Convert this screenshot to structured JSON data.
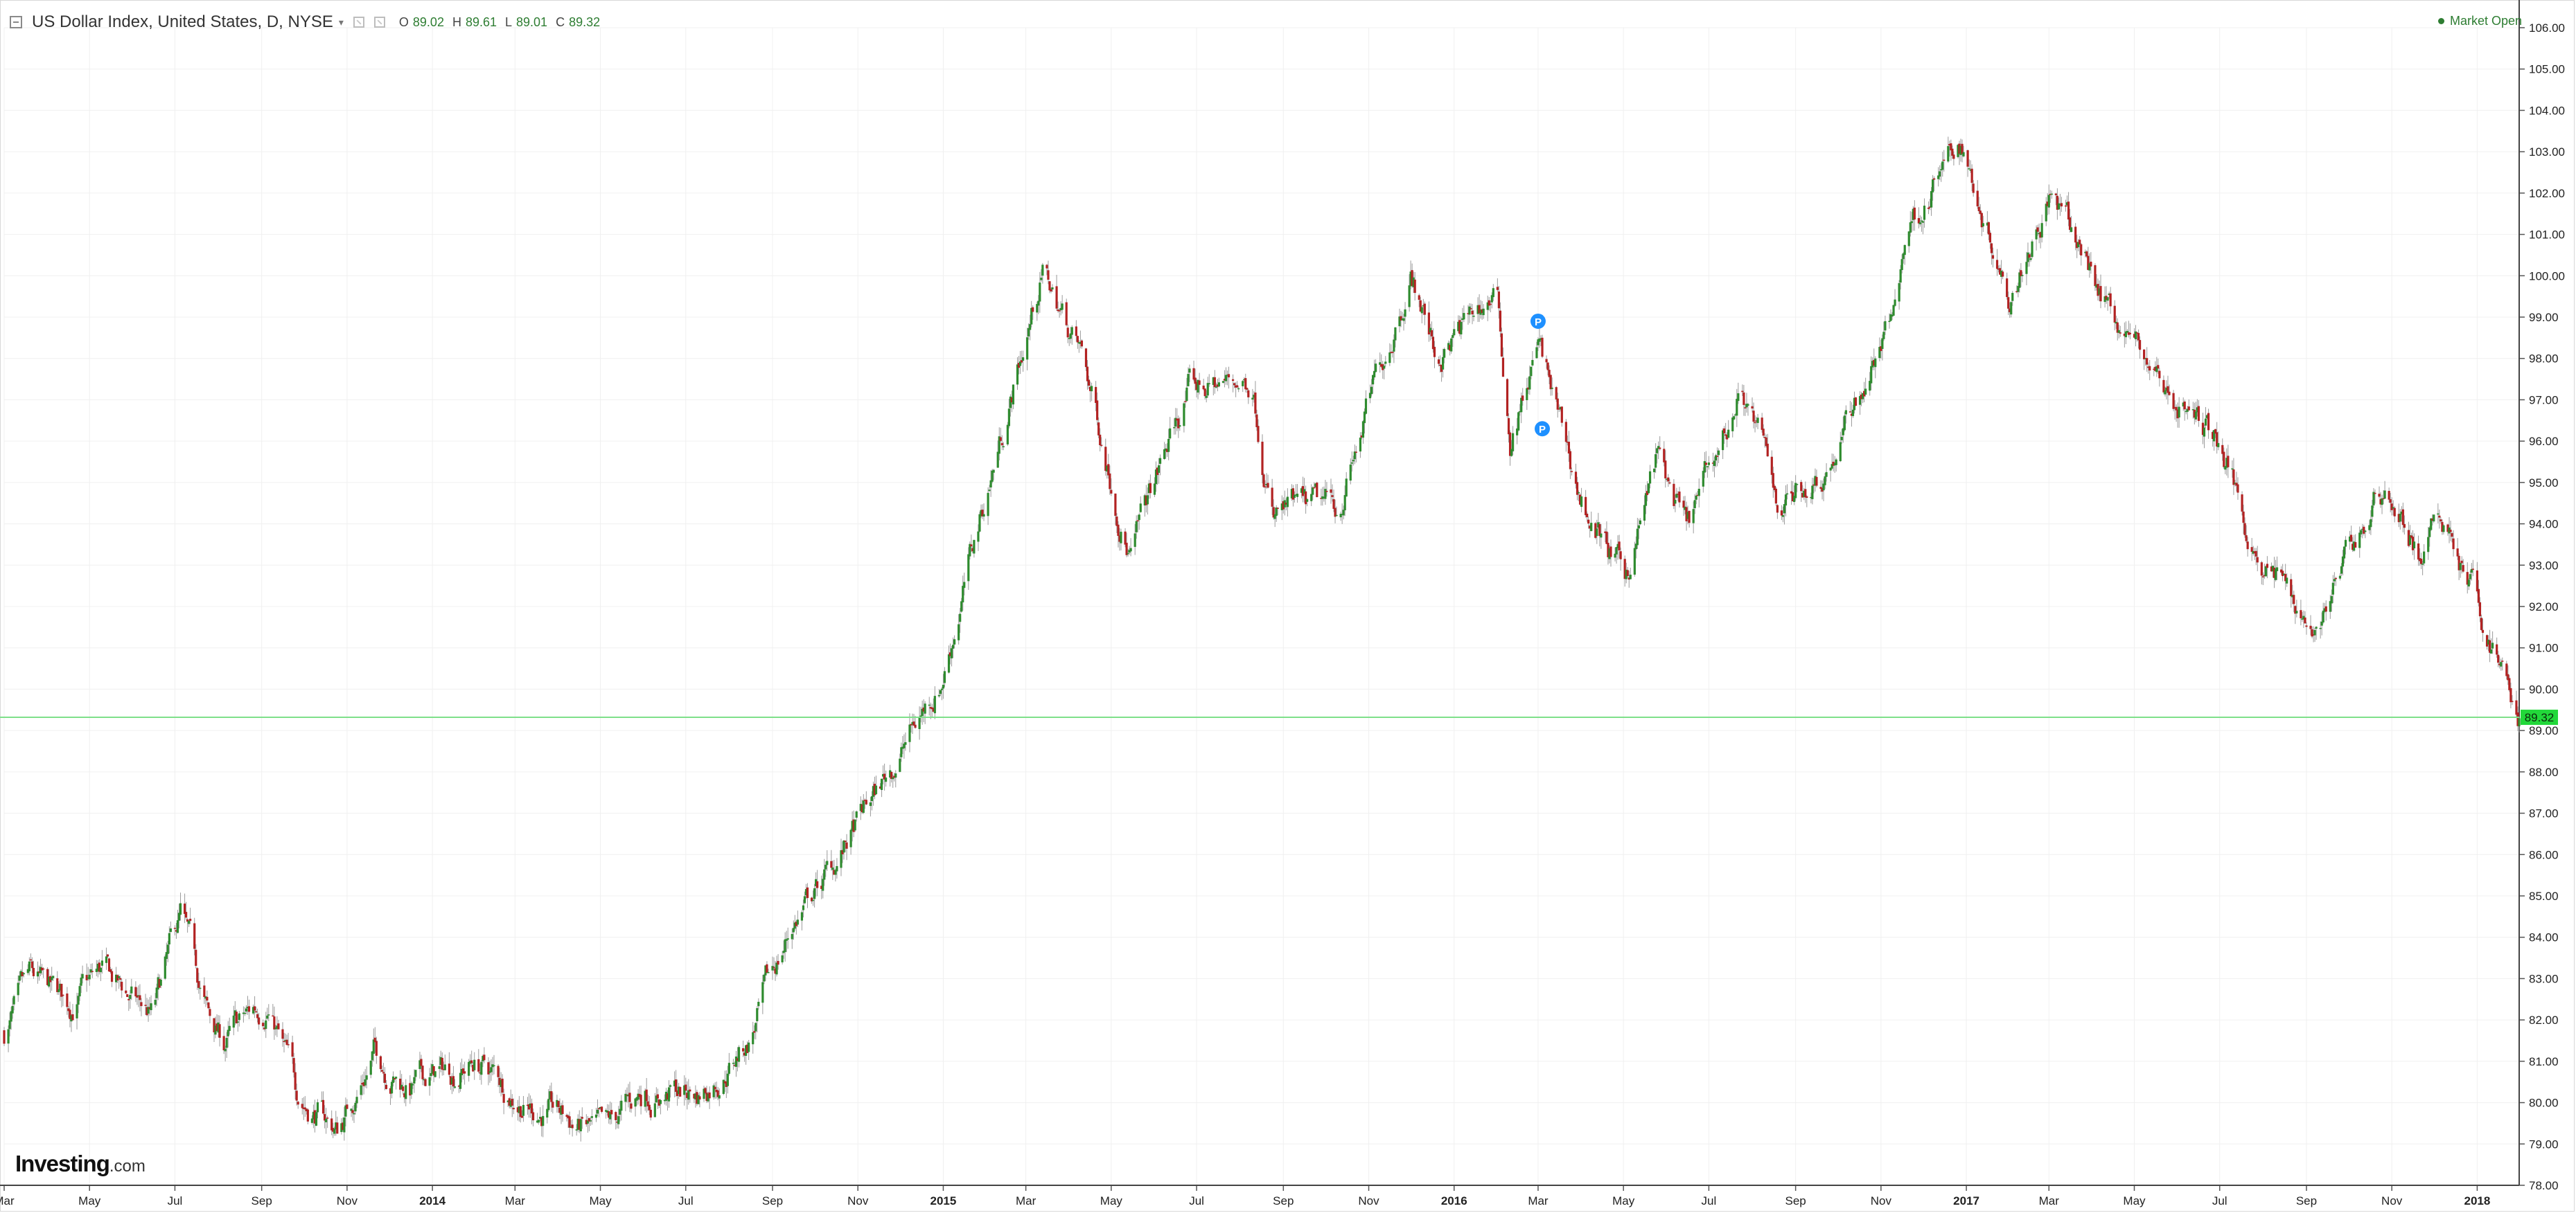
{
  "header": {
    "symbol_title": "US Dollar Index, United States, D, NYSE",
    "ohlc": {
      "o_label": "O",
      "o_value": "89.02",
      "h_label": "H",
      "h_value": "89.61",
      "l_label": "L",
      "l_value": "89.01",
      "c_label": "C",
      "c_value": "89.32"
    },
    "market_status": "Market Open"
  },
  "branding": {
    "name": "Investing",
    "domain": ".com"
  },
  "markers": {
    "label": "P"
  },
  "colors": {
    "up": "#2e8b2e",
    "down": "#b22222",
    "wick": "#9a9a9a",
    "grid": "#f0f0f0",
    "price_line": "#7ee08a",
    "price_tag": "#22d83a",
    "marker": "#1e90ff"
  },
  "chart_data": {
    "type": "candlestick",
    "title": "US Dollar Index, United States, D, NYSE",
    "current_price": 89.32,
    "current_price_label": "89.32",
    "ylim": [
      78.0,
      106.0
    ],
    "yticks": [
      "78.00",
      "79.00",
      "80.00",
      "81.00",
      "82.00",
      "83.00",
      "84.00",
      "85.00",
      "86.00",
      "87.00",
      "88.00",
      "89.00",
      "90.00",
      "91.00",
      "92.00",
      "93.00",
      "94.00",
      "95.00",
      "96.00",
      "97.00",
      "98.00",
      "99.00",
      "100.00",
      "101.00",
      "102.00",
      "103.00",
      "104.00",
      "105.00",
      "106.00"
    ],
    "xlim": [
      "2013-03-01",
      "2018-01-31"
    ],
    "xticks": [
      {
        "date": "2013-03-01",
        "label": "Mar",
        "bold": false
      },
      {
        "date": "2013-05-01",
        "label": "May",
        "bold": false
      },
      {
        "date": "2013-07-01",
        "label": "Jul",
        "bold": false
      },
      {
        "date": "2013-09-01",
        "label": "Sep",
        "bold": false
      },
      {
        "date": "2013-11-01",
        "label": "Nov",
        "bold": false
      },
      {
        "date": "2014-01-01",
        "label": "2014",
        "bold": true
      },
      {
        "date": "2014-03-01",
        "label": "Mar",
        "bold": false
      },
      {
        "date": "2014-05-01",
        "label": "May",
        "bold": false
      },
      {
        "date": "2014-07-01",
        "label": "Jul",
        "bold": false
      },
      {
        "date": "2014-09-01",
        "label": "Sep",
        "bold": false
      },
      {
        "date": "2014-11-01",
        "label": "Nov",
        "bold": false
      },
      {
        "date": "2015-01-01",
        "label": "2015",
        "bold": true
      },
      {
        "date": "2015-03-01",
        "label": "Mar",
        "bold": false
      },
      {
        "date": "2015-05-01",
        "label": "May",
        "bold": false
      },
      {
        "date": "2015-07-01",
        "label": "Jul",
        "bold": false
      },
      {
        "date": "2015-09-01",
        "label": "Sep",
        "bold": false
      },
      {
        "date": "2015-11-01",
        "label": "Nov",
        "bold": false
      },
      {
        "date": "2016-01-01",
        "label": "2016",
        "bold": true
      },
      {
        "date": "2016-03-01",
        "label": "Mar",
        "bold": false
      },
      {
        "date": "2016-05-01",
        "label": "May",
        "bold": false
      },
      {
        "date": "2016-07-01",
        "label": "Jul",
        "bold": false
      },
      {
        "date": "2016-09-01",
        "label": "Sep",
        "bold": false
      },
      {
        "date": "2016-11-01",
        "label": "Nov",
        "bold": false
      },
      {
        "date": "2017-01-01",
        "label": "2017",
        "bold": true
      },
      {
        "date": "2017-03-01",
        "label": "Mar",
        "bold": false
      },
      {
        "date": "2017-05-01",
        "label": "May",
        "bold": false
      },
      {
        "date": "2017-07-01",
        "label": "Jul",
        "bold": false
      },
      {
        "date": "2017-09-01",
        "label": "Sep",
        "bold": false
      },
      {
        "date": "2017-11-01",
        "label": "Nov",
        "bold": false
      },
      {
        "date": "2018-01-01",
        "label": "2018",
        "bold": true
      }
    ],
    "close_path": [
      {
        "date": "2013-03-01",
        "close": 81.7
      },
      {
        "date": "2013-03-20",
        "close": 82.8
      },
      {
        "date": "2013-04-15",
        "close": 82.3
      },
      {
        "date": "2013-05-10",
        "close": 83.1
      },
      {
        "date": "2013-06-15",
        "close": 82.0
      },
      {
        "date": "2013-07-05",
        "close": 84.4
      },
      {
        "date": "2013-07-25",
        "close": 82.0
      },
      {
        "date": "2013-08-05",
        "close": 81.4
      },
      {
        "date": "2013-09-05",
        "close": 82.5
      },
      {
        "date": "2013-09-25",
        "close": 80.3
      },
      {
        "date": "2013-10-25",
        "close": 79.3
      },
      {
        "date": "2013-11-20",
        "close": 81.2
      },
      {
        "date": "2013-12-15",
        "close": 80.4
      },
      {
        "date": "2014-02-01",
        "close": 81.0
      },
      {
        "date": "2014-03-10",
        "close": 80.0
      },
      {
        "date": "2014-05-05",
        "close": 79.1
      },
      {
        "date": "2014-06-01",
        "close": 80.3
      },
      {
        "date": "2014-07-10",
        "close": 80.2
      },
      {
        "date": "2014-08-15",
        "close": 81.5
      },
      {
        "date": "2014-09-15",
        "close": 84.3
      },
      {
        "date": "2014-10-15",
        "close": 85.7
      },
      {
        "date": "2014-11-15",
        "close": 87.5
      },
      {
        "date": "2014-12-31",
        "close": 90.3
      },
      {
        "date": "2015-01-31",
        "close": 94.6
      },
      {
        "date": "2015-03-13",
        "close": 100.1
      },
      {
        "date": "2015-04-10",
        "close": 98.0
      },
      {
        "date": "2015-05-15",
        "close": 93.3
      },
      {
        "date": "2015-06-25",
        "close": 97.2
      },
      {
        "date": "2015-08-10",
        "close": 97.5
      },
      {
        "date": "2015-08-25",
        "close": 94.2
      },
      {
        "date": "2015-10-10",
        "close": 94.3
      },
      {
        "date": "2015-12-01",
        "close": 100.2
      },
      {
        "date": "2015-12-20",
        "close": 98.0
      },
      {
        "date": "2016-01-31",
        "close": 99.6
      },
      {
        "date": "2016-02-10",
        "close": 96.0
      },
      {
        "date": "2016-03-01",
        "close": 98.3
      },
      {
        "date": "2016-03-31",
        "close": 94.6
      },
      {
        "date": "2016-05-02",
        "close": 92.6
      },
      {
        "date": "2016-05-25",
        "close": 95.6
      },
      {
        "date": "2016-06-15",
        "close": 93.7
      },
      {
        "date": "2016-07-25",
        "close": 97.3
      },
      {
        "date": "2016-08-20",
        "close": 94.5
      },
      {
        "date": "2016-09-25",
        "close": 95.5
      },
      {
        "date": "2016-11-09",
        "close": 98.9
      },
      {
        "date": "2016-11-20",
        "close": 101.2
      },
      {
        "date": "2016-12-28",
        "close": 103.2
      },
      {
        "date": "2017-01-31",
        "close": 99.8
      },
      {
        "date": "2017-03-01",
        "close": 102.0
      },
      {
        "date": "2017-04-15",
        "close": 99.2
      },
      {
        "date": "2017-05-25",
        "close": 97.2
      },
      {
        "date": "2017-06-30",
        "close": 96.0
      },
      {
        "date": "2017-07-30",
        "close": 93.2
      },
      {
        "date": "2017-09-08",
        "close": 91.5
      },
      {
        "date": "2017-10-27",
        "close": 95.0
      },
      {
        "date": "2017-11-20",
        "close": 93.3
      },
      {
        "date": "2017-12-10",
        "close": 94.0
      },
      {
        "date": "2018-01-31",
        "close": 89.32
      }
    ]
  }
}
